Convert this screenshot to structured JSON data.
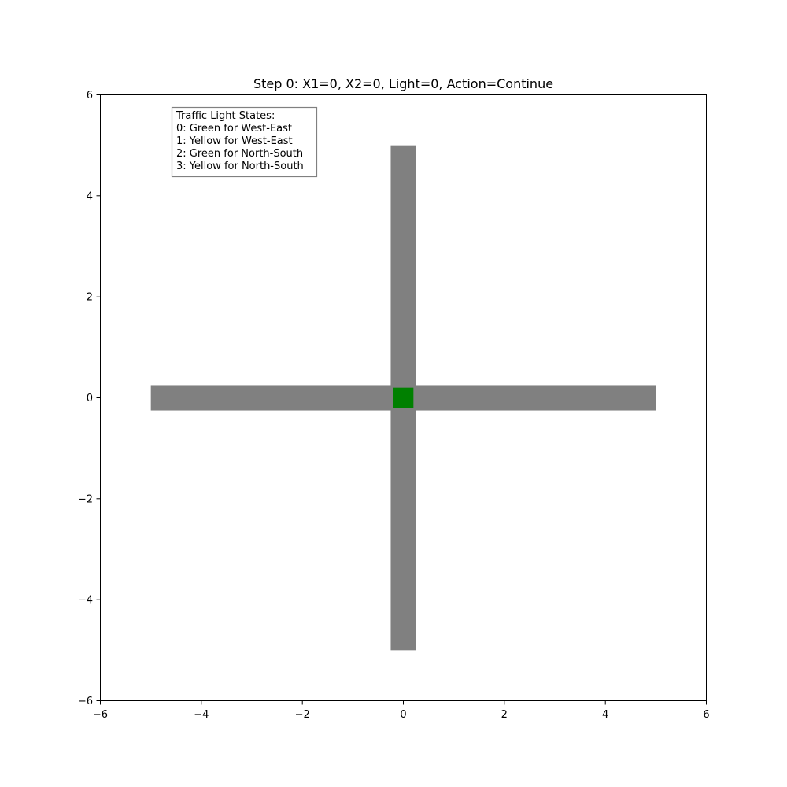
{
  "title": "Step 0: X1=0, X2=0, Light=0, Action=Continue",
  "axes": {
    "xlim": [
      -6,
      6
    ],
    "ylim": [
      -6,
      6
    ],
    "xticks": [
      "−6",
      "−4",
      "−2",
      "0",
      "2",
      "4",
      "6"
    ],
    "yticks": [
      "6",
      "4",
      "2",
      "0",
      "−2",
      "−4",
      "−6"
    ]
  },
  "legend_box": {
    "lines": [
      "Traffic Light States:",
      "0: Green for West-East",
      "1: Yellow for West-East",
      "2: Green for North-South",
      "3: Yellow for North-South"
    ]
  },
  "roads": {
    "horizontal": {
      "x_from": -5,
      "x_to": 5,
      "half_width": 0.25
    },
    "vertical": {
      "y_from": -5,
      "y_to": 5,
      "half_width": 0.25
    },
    "color": "#808080"
  },
  "traffic_light": {
    "state": 0,
    "center": [
      0,
      0
    ],
    "half_size": 0.2,
    "color": "#008000"
  }
}
